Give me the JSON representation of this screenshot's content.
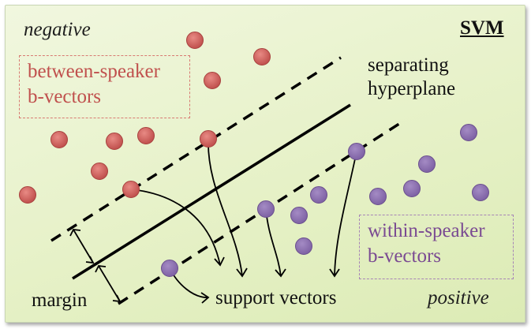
{
  "labels": {
    "negative": "negative",
    "positive": "positive",
    "svm": "SVM",
    "hyperplane_line1": "separating",
    "hyperplane_line2": "hyperplane",
    "margin": "margin",
    "support_vectors": "support vectors",
    "between_line1": "between-speaker",
    "between_line2": "b-vectors",
    "within_line1": "within-speaker",
    "within_line2": "b-vectors"
  },
  "colors": {
    "red_point": "#c0504d",
    "purple_point": "#8064a2",
    "line": "#000000"
  }
}
